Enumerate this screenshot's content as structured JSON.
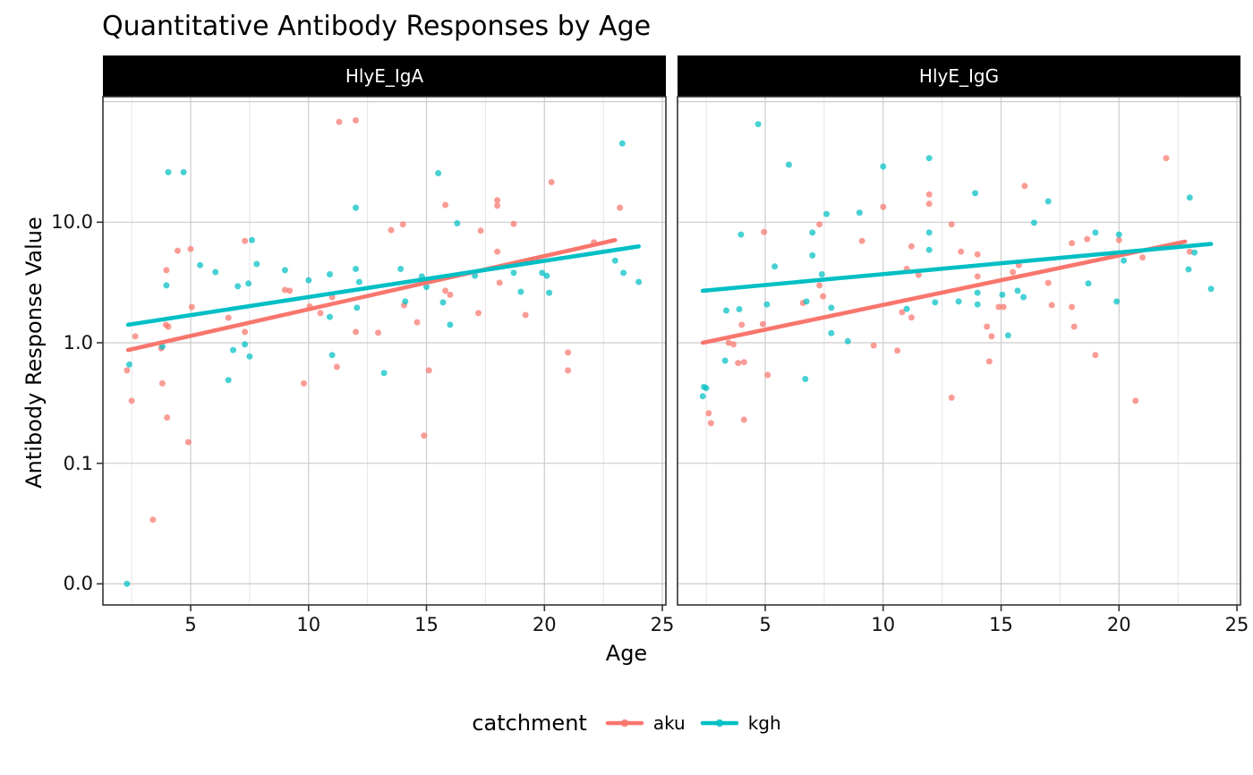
{
  "title": "Quantitative Antibody Responses by Age",
  "facets": {
    "left": "HlyE_IgA",
    "right": "HlyE_IgG"
  },
  "x_axis": {
    "label": "Age",
    "tick_labels": [
      "5",
      "10",
      "15",
      "20",
      "25"
    ],
    "ticks": [
      5,
      10,
      15,
      20,
      25
    ],
    "minor_ticks": [
      2.5,
      7.5,
      12.5,
      17.5,
      22.5
    ],
    "range": [
      1.28,
      25.15
    ]
  },
  "y_axis": {
    "label": "Antibody Response Value",
    "scale": "log10",
    "ticks": [
      {
        "v": 10,
        "label": "10.0"
      },
      {
        "v": 1,
        "label": "1.0"
      },
      {
        "v": 0.1,
        "label": "0.1"
      },
      {
        "v": 0.01,
        "label": "0.0"
      }
    ],
    "grid_values": [
      100,
      10,
      1,
      0.1,
      0.01
    ]
  },
  "legend": {
    "title": "catchment",
    "items": [
      {
        "label": "aku",
        "color": "#F8766D"
      },
      {
        "label": "kgh",
        "color": "#00BFC4"
      }
    ]
  },
  "colors": {
    "aku": "#F8766D",
    "kgh": "#00BFC4",
    "grid_major": "#cccccc",
    "grid_minor": "#e4e4e4",
    "panel_border": "#333333",
    "strip_bg": "#000000",
    "strip_text": "#ffffff"
  },
  "chart_data": [
    {
      "type": "scatter",
      "facet": "HlyE_IgA",
      "series": [
        {
          "name": "aku",
          "color": "#F8766D",
          "points": [
            [
              2.3,
              0.59
            ],
            [
              2.5,
              0.33
            ],
            [
              2.65,
              1.13
            ],
            [
              3.4,
              0.034
            ],
            [
              3.75,
              0.9
            ],
            [
              3.8,
              0.46
            ],
            [
              3.95,
              1.41
            ],
            [
              3.97,
              4.0
            ],
            [
              4.05,
              1.36
            ],
            [
              4.0,
              0.24
            ],
            [
              4.45,
              5.8
            ],
            [
              4.9,
              0.15
            ],
            [
              5.0,
              6.0
            ],
            [
              5.05,
              1.98
            ],
            [
              6.6,
              1.61
            ],
            [
              7.3,
              1.23
            ],
            [
              7.3,
              7.0
            ],
            [
              9.0,
              2.74
            ],
            [
              9.2,
              2.7
            ],
            [
              9.8,
              0.46
            ],
            [
              10.05,
              2.0
            ],
            [
              10.5,
              1.76
            ],
            [
              11.0,
              2.39
            ],
            [
              11.2,
              0.63
            ],
            [
              11.3,
              68
            ],
            [
              12.0,
              70
            ],
            [
              12.0,
              1.23
            ],
            [
              12.95,
              1.21
            ],
            [
              13.5,
              8.6
            ],
            [
              14.0,
              9.6
            ],
            [
              14.05,
              2.05
            ],
            [
              14.6,
              1.48
            ],
            [
              14.9,
              0.17
            ],
            [
              15.1,
              0.59
            ],
            [
              15.8,
              13.9
            ],
            [
              15.8,
              2.7
            ],
            [
              16.0,
              2.5
            ],
            [
              17.2,
              1.76
            ],
            [
              17.3,
              8.5
            ],
            [
              18.0,
              15.2
            ],
            [
              18.0,
              13.7
            ],
            [
              18.0,
              5.7
            ],
            [
              18.1,
              3.15
            ],
            [
              18.7,
              9.7
            ],
            [
              19.2,
              1.7
            ],
            [
              20.3,
              21.5
            ],
            [
              21.0,
              0.83
            ],
            [
              21.0,
              0.59
            ],
            [
              22.1,
              6.8
            ],
            [
              23.2,
              13.2
            ]
          ],
          "trend": [
            [
              2.35,
              0.87
            ],
            [
              23.0,
              7.1
            ]
          ]
        },
        {
          "name": "kgh",
          "color": "#00BFC4",
          "points": [
            [
              2.3,
              0.01
            ],
            [
              2.4,
              0.66
            ],
            [
              3.8,
              0.93
            ],
            [
              3.97,
              2.99
            ],
            [
              4.05,
              26
            ],
            [
              4.7,
              26
            ],
            [
              5.4,
              4.4
            ],
            [
              6.05,
              3.86
            ],
            [
              6.6,
              0.49
            ],
            [
              6.8,
              0.87
            ],
            [
              7.0,
              2.94
            ],
            [
              7.3,
              0.97
            ],
            [
              7.45,
              3.1
            ],
            [
              7.5,
              0.77
            ],
            [
              7.6,
              7.1
            ],
            [
              7.8,
              4.5
            ],
            [
              9.0,
              4.0
            ],
            [
              10.0,
              3.3
            ],
            [
              10.9,
              3.7
            ],
            [
              10.9,
              1.64
            ],
            [
              11.0,
              0.79
            ],
            [
              12.0,
              4.1
            ],
            [
              12.0,
              13.2
            ],
            [
              12.15,
              3.2
            ],
            [
              12.05,
              1.95
            ],
            [
              13.2,
              0.56
            ],
            [
              13.9,
              4.1
            ],
            [
              14.1,
              2.2
            ],
            [
              14.8,
              3.55
            ],
            [
              15.0,
              2.9
            ],
            [
              15.5,
              25.5
            ],
            [
              15.7,
              2.16
            ],
            [
              16.0,
              1.41
            ],
            [
              16.3,
              9.8
            ],
            [
              17.05,
              3.6
            ],
            [
              18.7,
              3.8
            ],
            [
              19.0,
              2.65
            ],
            [
              19.9,
              3.8
            ],
            [
              20.1,
              3.6
            ],
            [
              20.2,
              2.6
            ],
            [
              23.0,
              4.8
            ],
            [
              23.3,
              45
            ],
            [
              23.35,
              3.8
            ],
            [
              24.0,
              3.2
            ]
          ],
          "trend": [
            [
              2.35,
              1.41
            ],
            [
              24.0,
              6.3
            ]
          ]
        }
      ]
    },
    {
      "type": "scatter",
      "facet": "HlyE_IgG",
      "series": [
        {
          "name": "aku",
          "color": "#F8766D",
          "points": [
            [
              2.6,
              0.26
            ],
            [
              2.7,
              0.215
            ],
            [
              3.45,
              1.0
            ],
            [
              3.65,
              0.97
            ],
            [
              3.85,
              0.68
            ],
            [
              4.1,
              0.69
            ],
            [
              4.0,
              1.41
            ],
            [
              4.1,
              0.23
            ],
            [
              4.9,
              1.43
            ],
            [
              4.95,
              8.3
            ],
            [
              5.1,
              0.54
            ],
            [
              6.6,
              2.14
            ],
            [
              7.3,
              9.6
            ],
            [
              7.3,
              2.99
            ],
            [
              7.45,
              2.43
            ],
            [
              9.1,
              7.0
            ],
            [
              9.6,
              0.95
            ],
            [
              10.0,
              13.4
            ],
            [
              10.6,
              0.86
            ],
            [
              10.8,
              1.79
            ],
            [
              11.0,
              4.1
            ],
            [
              11.2,
              6.3
            ],
            [
              11.2,
              1.62
            ],
            [
              11.5,
              3.65
            ],
            [
              11.95,
              17
            ],
            [
              11.95,
              14.2
            ],
            [
              12.9,
              9.6
            ],
            [
              12.9,
              0.35
            ],
            [
              13.3,
              5.7
            ],
            [
              14.0,
              5.4
            ],
            [
              14.0,
              3.55
            ],
            [
              14.5,
              0.7
            ],
            [
              14.6,
              1.13
            ],
            [
              14.4,
              1.36
            ],
            [
              14.9,
              1.98
            ],
            [
              15.1,
              1.98
            ],
            [
              15.5,
              3.85
            ],
            [
              15.75,
              4.4
            ],
            [
              16.0,
              20
            ],
            [
              17.0,
              3.14
            ],
            [
              17.15,
              2.05
            ],
            [
              18.0,
              6.7
            ],
            [
              18.0,
              1.98
            ],
            [
              18.1,
              1.36
            ],
            [
              18.65,
              7.25
            ],
            [
              19.0,
              0.79
            ],
            [
              20.0,
              7.1
            ],
            [
              20.7,
              0.33
            ],
            [
              21.0,
              5.1
            ],
            [
              22.0,
              34
            ],
            [
              23.0,
              5.7
            ]
          ],
          "trend": [
            [
              2.35,
              1.0
            ],
            [
              22.8,
              6.9
            ]
          ]
        },
        {
          "name": "kgh",
          "color": "#00BFC4",
          "points": [
            [
              2.35,
              0.36
            ],
            [
              2.4,
              0.43
            ],
            [
              2.5,
              0.42
            ],
            [
              3.3,
              0.71
            ],
            [
              3.35,
              1.85
            ],
            [
              3.9,
              1.9
            ],
            [
              3.97,
              7.9
            ],
            [
              4.7,
              65
            ],
            [
              5.07,
              2.08
            ],
            [
              5.4,
              4.3
            ],
            [
              6.0,
              30
            ],
            [
              6.7,
              0.5
            ],
            [
              6.75,
              2.2
            ],
            [
              7.0,
              8.2
            ],
            [
              7.0,
              5.3
            ],
            [
              7.4,
              3.7
            ],
            [
              7.6,
              11.7
            ],
            [
              7.8,
              1.95
            ],
            [
              7.8,
              1.2
            ],
            [
              8.5,
              1.03
            ],
            [
              9.0,
              12.0
            ],
            [
              10.0,
              29
            ],
            [
              11.0,
              1.91
            ],
            [
              11.95,
              34
            ],
            [
              11.95,
              8.2
            ],
            [
              11.95,
              5.9
            ],
            [
              12.2,
              2.16
            ],
            [
              13.2,
              2.2
            ],
            [
              13.9,
              17.4
            ],
            [
              14.0,
              2.6
            ],
            [
              14.0,
              2.08
            ],
            [
              15.05,
              2.5
            ],
            [
              15.3,
              1.15
            ],
            [
              15.7,
              2.7
            ],
            [
              15.95,
              2.39
            ],
            [
              16.4,
              9.9
            ],
            [
              17.0,
              14.9
            ],
            [
              18.7,
              3.1
            ],
            [
              19.0,
              8.2
            ],
            [
              19.9,
              2.2
            ],
            [
              20.0,
              7.9
            ],
            [
              20.2,
              4.8
            ],
            [
              22.95,
              4.06
            ],
            [
              23.0,
              16.0
            ],
            [
              23.2,
              5.6
            ],
            [
              23.9,
              2.8
            ]
          ],
          "trend": [
            [
              2.35,
              2.7
            ],
            [
              23.9,
              6.6
            ]
          ]
        }
      ]
    }
  ]
}
